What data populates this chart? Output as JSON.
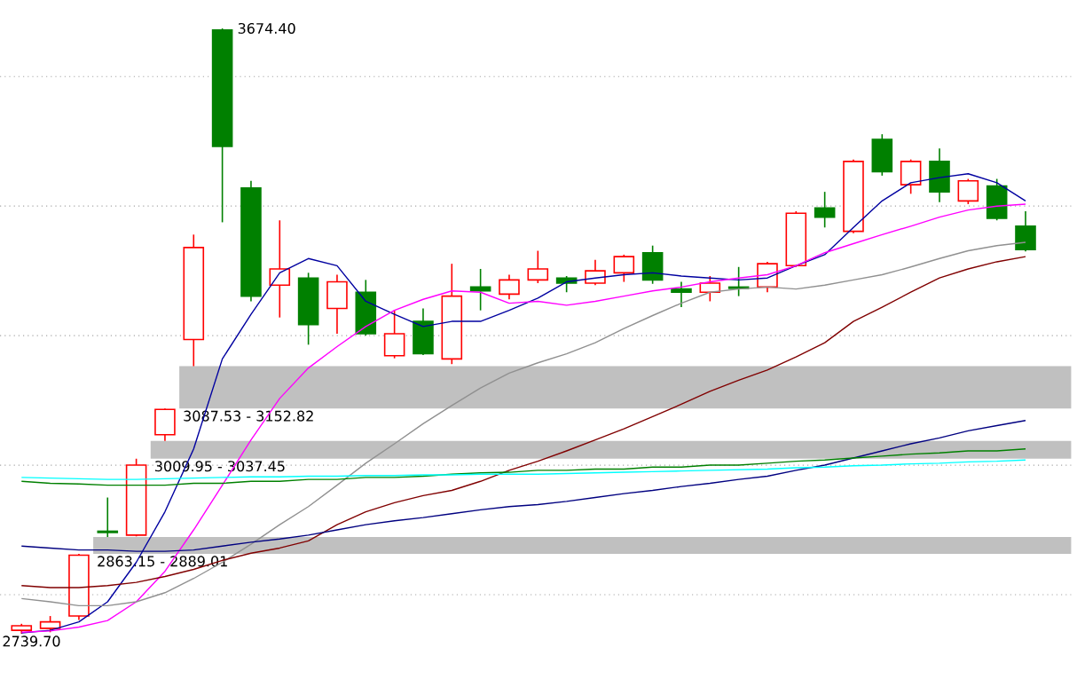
{
  "chart_data": {
    "type": "candlestick",
    "categories": [
      null,
      null,
      null,
      null,
      null,
      null,
      null,
      null,
      null,
      null,
      null,
      null,
      null,
      null,
      null,
      null,
      null,
      null,
      null,
      null,
      null,
      null,
      null,
      null,
      null,
      null,
      null,
      null,
      null,
      null,
      null,
      null,
      null,
      null,
      null,
      null
    ],
    "ohlc": [
      [
        2745,
        2755,
        2739.7,
        2752
      ],
      [
        2748,
        2767,
        2742,
        2758
      ],
      [
        2767,
        2863.15,
        2761,
        2861
      ],
      [
        2898,
        2950,
        2889.01,
        2896
      ],
      [
        2892,
        3009.95,
        2890,
        3000
      ],
      [
        3047,
        3087.53,
        3037.45,
        3086
      ],
      [
        3194,
        3356,
        3152.82,
        3336
      ],
      [
        3672,
        3674.4,
        3375,
        3492
      ],
      [
        3428,
        3439,
        3253,
        3261
      ],
      [
        3278,
        3378,
        3228,
        3303
      ],
      [
        3289,
        3297,
        3186,
        3217
      ],
      [
        3242,
        3294,
        3203,
        3283
      ],
      [
        3267,
        3286,
        3200,
        3203
      ],
      [
        3169,
        3239,
        3165,
        3203
      ],
      [
        3222,
        3242,
        3170,
        3172
      ],
      [
        3164,
        3311,
        3156,
        3261
      ],
      [
        3275,
        3303,
        3239,
        3269
      ],
      [
        3264,
        3294,
        3256,
        3286
      ],
      [
        3286,
        3331,
        3281,
        3303
      ],
      [
        3289,
        3292,
        3267,
        3281
      ],
      [
        3281,
        3317,
        3278,
        3300
      ],
      [
        3297,
        3325,
        3283,
        3322
      ],
      [
        3328,
        3339,
        3280,
        3286
      ],
      [
        3272,
        3283,
        3244,
        3267
      ],
      [
        3267,
        3292,
        3253,
        3281
      ],
      [
        3275,
        3306,
        3261,
        3273
      ],
      [
        3275,
        3314,
        3267,
        3311
      ],
      [
        3308,
        3392,
        3306,
        3389
      ],
      [
        3397,
        3422,
        3367,
        3383
      ],
      [
        3361,
        3472,
        3358,
        3469
      ],
      [
        3503,
        3511,
        3447,
        3453
      ],
      [
        3433,
        3472,
        3419,
        3469
      ],
      [
        3469,
        3489,
        3406,
        3422
      ],
      [
        3408,
        3442,
        3403,
        3439
      ],
      [
        3431,
        3442,
        3378,
        3381
      ],
      [
        3369,
        3392,
        3330,
        3333
      ]
    ],
    "series": [
      {
        "type": "line",
        "color": "#0000a0",
        "values": [
          2741,
          2745,
          2758,
          2789,
          2850,
          2928,
          3025,
          3164,
          3233,
          3297,
          3319,
          3308,
          3253,
          3233,
          3214,
          3222,
          3222,
          3239,
          3258,
          3283,
          3289,
          3294,
          3297,
          3292,
          3289,
          3286,
          3289,
          3308,
          3325,
          3367,
          3408,
          3436,
          3444,
          3450,
          3436,
          3408
        ]
      },
      {
        "type": "line",
        "color": "#ff00ff",
        "values": [
          2742,
          2744,
          2750,
          2760,
          2789,
          2836,
          2900,
          2969,
          3039,
          3103,
          3150,
          3183,
          3214,
          3239,
          3256,
          3269,
          3267,
          3250,
          3253,
          3247,
          3253,
          3261,
          3269,
          3275,
          3283,
          3289,
          3294,
          3308,
          3328,
          3342,
          3356,
          3369,
          3383,
          3394,
          3400,
          3403
        ]
      },
      {
        "type": "line",
        "color": "#909090",
        "values": [
          2794,
          2789,
          2783,
          2783,
          2789,
          2803,
          2825,
          2850,
          2878,
          2908,
          2936,
          2969,
          3003,
          3033,
          3064,
          3092,
          3119,
          3142,
          3158,
          3172,
          3189,
          3211,
          3231,
          3250,
          3267,
          3272,
          3275,
          3272,
          3278,
          3286,
          3294,
          3306,
          3319,
          3331,
          3339,
          3344
        ]
      },
      {
        "type": "line",
        "color": "#800000",
        "values": [
          2814,
          2811,
          2811,
          2814,
          2819,
          2828,
          2839,
          2853,
          2864,
          2872,
          2883,
          2908,
          2928,
          2942,
          2953,
          2961,
          2975,
          2992,
          3006,
          3022,
          3039,
          3056,
          3075,
          3094,
          3114,
          3131,
          3147,
          3167,
          3189,
          3222,
          3244,
          3267,
          3289,
          3303,
          3314,
          3322
        ]
      },
      {
        "type": "line",
        "color": "#000080",
        "values": [
          2875,
          2872,
          2869,
          2869,
          2867,
          2867,
          2869,
          2875,
          2881,
          2886,
          2892,
          2900,
          2908,
          2914,
          2919,
          2925,
          2931,
          2936,
          2939,
          2944,
          2950,
          2956,
          2961,
          2967,
          2972,
          2978,
          2983,
          2992,
          3000,
          3011,
          3022,
          3033,
          3042,
          3053,
          3061,
          3069
        ]
      },
      {
        "type": "line",
        "color": "#008000",
        "values": [
          2975,
          2972,
          2971,
          2969,
          2969,
          2969,
          2972,
          2972,
          2975,
          2975,
          2978,
          2978,
          2981,
          2981,
          2983,
          2986,
          2988,
          2989,
          2992,
          2992,
          2994,
          2994,
          2997,
          2997,
          3000,
          3000,
          3003,
          3006,
          3008,
          3011,
          3014,
          3017,
          3019,
          3022,
          3022,
          3025
        ]
      },
      {
        "type": "line",
        "color": "#00ffff",
        "values": [
          2981,
          2980,
          2979,
          2978,
          2978,
          2979,
          2980,
          2981,
          2982,
          2982,
          2983,
          2983,
          2984,
          2984,
          2985,
          2985,
          2986,
          2986,
          2986,
          2987,
          2988,
          2989,
          2990,
          2991,
          2992,
          2993,
          2994,
          2996,
          2997,
          2999,
          3000,
          3002,
          3003,
          3005,
          3006,
          3008
        ]
      }
    ],
    "bands": [
      {
        "axis": "y",
        "from": 2863.15,
        "to": 2889.01,
        "label": "2863.15 - 2889.01",
        "color": "#c0c0c0"
      },
      {
        "axis": "y",
        "from": 3009.95,
        "to": 3037.45,
        "label": "3009.95 - 3037.45",
        "color": "#c0c0c0"
      },
      {
        "axis": "y",
        "from": 3087.53,
        "to": 3152.82,
        "label": "3087.53 - 3152.82",
        "color": "#c0c0c0"
      }
    ],
    "annotations": [
      "3674.40",
      "2739.70"
    ],
    "yticks": [
      {
        "value": 2800,
        "label": null
      },
      {
        "value": 3000,
        "label": null
      },
      {
        "value": 3200,
        "label": null
      },
      {
        "value": 3400,
        "label": null
      },
      {
        "value": 3600,
        "label": null
      }
    ],
    "grid": "y"
  }
}
